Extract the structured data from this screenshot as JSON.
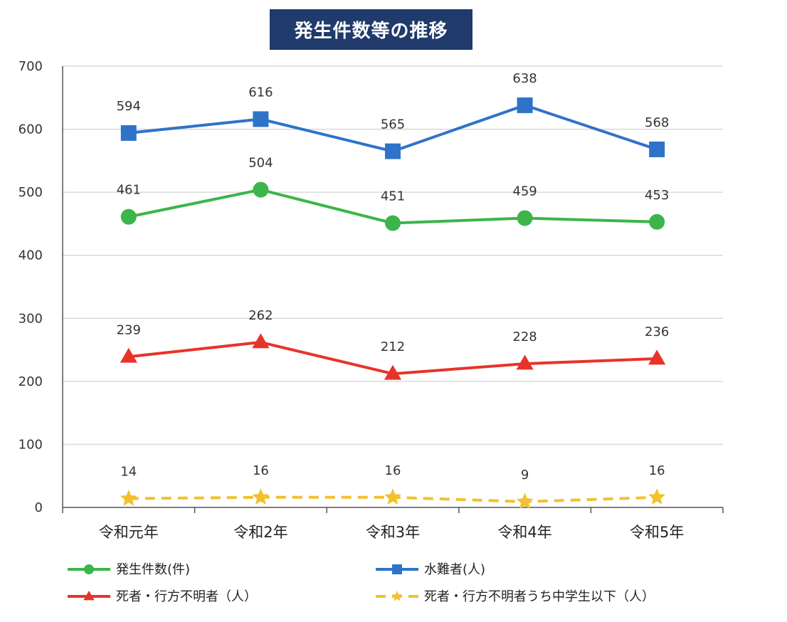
{
  "chart_data": {
    "type": "line",
    "title": "発生件数等の推移",
    "categories": [
      "令和元年",
      "令和2年",
      "令和3年",
      "令和4年",
      "令和5年"
    ],
    "ylim": [
      0,
      700
    ],
    "yticks": [
      0,
      100,
      200,
      300,
      400,
      500,
      600,
      700
    ],
    "grid": true,
    "legend_position": "bottom",
    "series": [
      {
        "name": "水難者(人)",
        "values": [
          594,
          616,
          565,
          638,
          568
        ],
        "color": "#2e73c8",
        "marker": "square",
        "dash": false
      },
      {
        "name": "発生件数(件)",
        "values": [
          461,
          504,
          451,
          459,
          453
        ],
        "color": "#3cb54a",
        "marker": "circle",
        "dash": false
      },
      {
        "name": "死者・行方不明者（人）",
        "values": [
          239,
          262,
          212,
          228,
          236
        ],
        "color": "#e8332a",
        "marker": "triangle",
        "dash": false
      },
      {
        "name": "死者・行方不明者うち中学生以下（人）",
        "values": [
          14,
          16,
          16,
          9,
          16
        ],
        "color": "#f2c12e",
        "marker": "star",
        "dash": true
      }
    ],
    "legend_order": [
      1,
      0,
      2,
      3
    ]
  }
}
